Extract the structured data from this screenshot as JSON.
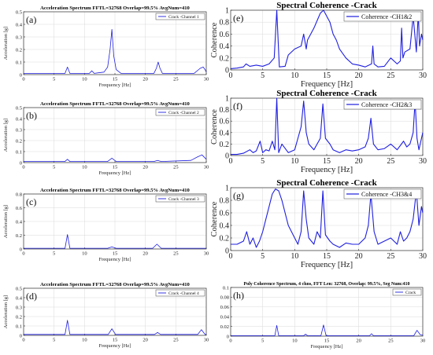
{
  "chart_data": [
    {
      "type": "line",
      "panel": "(a)",
      "title": "Acceleration Spectrum FFTL=32768 Overlap=99.5% AvgNum=410",
      "xlabel": "Frequency [Hz]",
      "ylabel": "Acceleration [g]",
      "xlim": [
        0,
        30
      ],
      "ylim": [
        0,
        0.5
      ],
      "xticks": [
        0,
        5,
        10,
        15,
        20,
        25,
        30
      ],
      "yticks": [
        0,
        0.1,
        0.2,
        0.3,
        0.4,
        0.5
      ],
      "ytick_labels": [
        "0",
        "0.1",
        "0.2",
        "0.3",
        "0.4",
        "0.5"
      ],
      "grid": true,
      "legend_position": "top-right",
      "series": [
        {
          "name": "Crack -Channel 1",
          "color": "#1f1fe0",
          "x": [
            0,
            6.8,
            7.2,
            7.6,
            10.8,
            11.2,
            11.6,
            13.2,
            13.8,
            14.2,
            14.5,
            14.8,
            15.2,
            16,
            21.4,
            21.8,
            22.1,
            22.4,
            22.8,
            28,
            29,
            29.5,
            29.8,
            30
          ],
          "y": [
            0.01,
            0.01,
            0.06,
            0.01,
            0.01,
            0.03,
            0.01,
            0.02,
            0.06,
            0.2,
            0.36,
            0.15,
            0.04,
            0.01,
            0.01,
            0.05,
            0.1,
            0.05,
            0.01,
            0.01,
            0.05,
            0.06,
            0.04,
            0.02
          ]
        }
      ]
    },
    {
      "type": "line",
      "panel": "(b)",
      "title": "Acceleration Spectrum FFTL=32768 Overlap=99.5% AvgNum=410",
      "xlabel": "Frequency [Hz]",
      "ylabel": "Acceleration [g]",
      "xlim": [
        0,
        30
      ],
      "ylim": [
        0,
        0.5
      ],
      "xticks": [
        0,
        5,
        10,
        15,
        20,
        25,
        30
      ],
      "yticks": [
        0,
        0.1,
        0.2,
        0.3,
        0.4,
        0.5
      ],
      "ytick_labels": [
        "0",
        "0.1",
        "0.2",
        "0.3",
        "0.4",
        "0.5"
      ],
      "grid": true,
      "legend_position": "top-right",
      "series": [
        {
          "name": "Crack -Channel 2",
          "color": "#1f1fe0",
          "x": [
            0,
            6.8,
            7.2,
            7.6,
            13.8,
            14.5,
            15.2,
            21.4,
            22,
            22.6,
            27.5,
            28.5,
            29.3,
            30
          ],
          "y": [
            0.01,
            0.01,
            0.03,
            0.01,
            0.01,
            0.04,
            0.01,
            0.01,
            0.02,
            0.01,
            0.02,
            0.05,
            0.07,
            0.03
          ]
        }
      ]
    },
    {
      "type": "line",
      "panel": "(c)",
      "title": "Acceleration Spectrum FFTL=32768 Overlap=99.5% AvgNum=410",
      "xlabel": "Frequency [Hz]",
      "ylabel": "Acceleration [g]",
      "xlim": [
        0,
        30
      ],
      "ylim": [
        0,
        0.8
      ],
      "xticks": [
        0,
        5,
        10,
        15,
        20,
        25,
        30
      ],
      "yticks": [
        0,
        0.2,
        0.4,
        0.6,
        0.8
      ],
      "ytick_labels": [
        "0",
        "0.2",
        "0.4",
        "0.6",
        "0.8"
      ],
      "grid": true,
      "legend_position": "top-right",
      "series": [
        {
          "name": "Crack -Channel 3",
          "color": "#1f1fe0",
          "x": [
            0,
            6.8,
            7.2,
            7.6,
            13.8,
            14.5,
            15.2,
            21.2,
            21.9,
            22.6,
            30
          ],
          "y": [
            0.01,
            0.01,
            0.21,
            0.01,
            0.01,
            0.03,
            0.01,
            0.01,
            0.07,
            0.01,
            0.01
          ]
        }
      ]
    },
    {
      "type": "line",
      "panel": "(d)",
      "title": "Acceleration Spectrum FFTL=32768 Overlap=99.5% AvgNum=410",
      "xlabel": "Frequency [Hz]",
      "ylabel": "Acceleration [g]",
      "xlim": [
        0,
        30
      ],
      "ylim": [
        0,
        0.5
      ],
      "xticks": [
        0,
        5,
        10,
        15,
        20,
        25,
        30
      ],
      "yticks": [
        0,
        0.1,
        0.2,
        0.3,
        0.4,
        0.5
      ],
      "ytick_labels": [
        "0",
        "0.1",
        "0.2",
        "0.3",
        "0.4",
        "0.5"
      ],
      "grid": true,
      "legend_position": "top-right",
      "series": [
        {
          "name": "Crack -Channel 4",
          "color": "#1f1fe0",
          "x": [
            0,
            6.8,
            7.2,
            7.6,
            13.9,
            14.5,
            15.1,
            21.5,
            22,
            22.5,
            28.6,
            29.2,
            29.8,
            30
          ],
          "y": [
            0.01,
            0.01,
            0.16,
            0.01,
            0.01,
            0.07,
            0.01,
            0.01,
            0.03,
            0.01,
            0.01,
            0.06,
            0.01,
            0.01
          ]
        }
      ]
    },
    {
      "type": "line",
      "panel": "(e)",
      "title": "Spectral Coherence -Crack",
      "xlabel": "Frequency [Hz]",
      "ylabel": "Coherence",
      "xlim": [
        0,
        30
      ],
      "ylim": [
        0,
        1
      ],
      "xticks": [
        0,
        5,
        10,
        15,
        20,
        25,
        30
      ],
      "yticks": [
        0,
        0.2,
        0.4,
        0.6,
        0.8,
        1
      ],
      "ytick_labels": [
        "0",
        "0.2",
        "0.4",
        "0.6",
        "0.8",
        "1"
      ],
      "grid": true,
      "legend_position": "top-right",
      "series": [
        {
          "name": "Coherence -CH1&2",
          "color": "#1f1fe0",
          "x": [
            0,
            1,
            2,
            2.4,
            3,
            4,
            5,
            6,
            6.8,
            7.2,
            7.6,
            8.5,
            9,
            10,
            11,
            11.4,
            11.8,
            12,
            13,
            13.6,
            14,
            14.5,
            15,
            15.5,
            16,
            16.5,
            17,
            18,
            19,
            20,
            21,
            22,
            22.2,
            22.4,
            23,
            24,
            25,
            26,
            26.5,
            26.7,
            26.9,
            27.2,
            28,
            28.5,
            29,
            29.3,
            29.5,
            29.8,
            30
          ],
          "y": [
            0.02,
            0.03,
            0.05,
            0.1,
            0.06,
            0.08,
            0.06,
            0.1,
            0.2,
            1,
            0.05,
            0.06,
            0.25,
            0.35,
            0.4,
            0.6,
            0.35,
            0.5,
            0.7,
            0.85,
            0.95,
            1,
            0.9,
            0.8,
            0.6,
            0.5,
            0.35,
            0.2,
            0.1,
            0.08,
            0.05,
            0.1,
            0.4,
            0.1,
            0.05,
            0.06,
            0.2,
            0.1,
            0.15,
            0.7,
            0.2,
            0.3,
            0.35,
            0.9,
            0.3,
            0.95,
            0.4,
            0.6,
            0.5
          ]
        }
      ]
    },
    {
      "type": "line",
      "panel": "(f)",
      "title": "Spectral Coherence -Crack",
      "xlabel": "Frequency [Hz]",
      "ylabel": "Coherence",
      "xlim": [
        0,
        30
      ],
      "ylim": [
        0,
        1
      ],
      "xticks": [
        0,
        5,
        10,
        15,
        20,
        25,
        30
      ],
      "yticks": [
        0,
        0.2,
        0.4,
        0.6,
        0.8,
        1
      ],
      "ytick_labels": [
        "0",
        "0.2",
        "0.4",
        "0.6",
        "0.8",
        "1"
      ],
      "grid": true,
      "legend_position": "top-right",
      "series": [
        {
          "name": "Coherence -CH2&3",
          "color": "#1f1fe0",
          "x": [
            0,
            1,
            2,
            3,
            3.5,
            4,
            4.6,
            5,
            5.5,
            6,
            6.5,
            6.9,
            7.2,
            7.5,
            8,
            9,
            10,
            10.5,
            11,
            11.4,
            11.8,
            12.2,
            13,
            13.5,
            14,
            14.4,
            14.8,
            15.5,
            16,
            17,
            18,
            19,
            20,
            21,
            21.5,
            21.9,
            22.3,
            23,
            24,
            25,
            26,
            27,
            27.5,
            28,
            28.5,
            28.8,
            29.1,
            29.4,
            30
          ],
          "y": [
            0.02,
            0.02,
            0.04,
            0.1,
            0.05,
            0.08,
            0.25,
            0.05,
            0.1,
            0.08,
            0.25,
            0.1,
            1,
            0.05,
            0.2,
            0.05,
            0.1,
            0.3,
            0.5,
            0.95,
            0.4,
            0.2,
            0.1,
            0.2,
            0.3,
            0.9,
            0.3,
            0.2,
            0.1,
            0.05,
            0.1,
            0.08,
            0.1,
            0.15,
            0.3,
            0.65,
            0.2,
            0.1,
            0.12,
            0.2,
            0.1,
            0.25,
            0.15,
            0.2,
            0.4,
            0.95,
            0.3,
            0.1,
            0.4
          ]
        }
      ]
    },
    {
      "type": "line",
      "panel": "(g)",
      "title": "Spectral Coherence -Crack",
      "xlabel": "Frequency [Hz]",
      "ylabel": "Coherence",
      "xlim": [
        0,
        30
      ],
      "ylim": [
        0,
        1
      ],
      "xticks": [
        0,
        5,
        10,
        15,
        20,
        25,
        30
      ],
      "yticks": [
        0,
        0.2,
        0.4,
        0.6,
        0.8,
        1
      ],
      "ytick_labels": [
        "0",
        "0.2",
        "0.4",
        "0.6",
        "0.8",
        "1"
      ],
      "grid": true,
      "legend_position": "top-right",
      "series": [
        {
          "name": "Coherence -CH3&4",
          "color": "#1f1fe0",
          "x": [
            0,
            1,
            2,
            2.5,
            3,
            3.5,
            4,
            4.5,
            5,
            5.5,
            6,
            6.5,
            7,
            7.5,
            8,
            8.5,
            9,
            9.5,
            10,
            10.5,
            11,
            11.4,
            11.8,
            12.2,
            13,
            13.5,
            14,
            14.4,
            14.8,
            15.5,
            16,
            17,
            18,
            19,
            20,
            21,
            21.5,
            21.9,
            22.4,
            23,
            24,
            25,
            26,
            26.5,
            27,
            27.5,
            28,
            28.5,
            29,
            29.4,
            29.8,
            30
          ],
          "y": [
            0.1,
            0.1,
            0.15,
            0.3,
            0.1,
            0.2,
            0.05,
            0.15,
            0.3,
            0.5,
            0.7,
            0.9,
            0.98,
            0.95,
            0.8,
            0.6,
            0.4,
            0.3,
            0.2,
            0.1,
            0.3,
            0.95,
            0.5,
            0.2,
            0.1,
            0.3,
            0.2,
            0.95,
            0.25,
            0.15,
            0.1,
            0.05,
            0.12,
            0.1,
            0.1,
            0.2,
            0.4,
            0.9,
            0.3,
            0.1,
            0.15,
            0.2,
            0.1,
            0.3,
            0.15,
            0.2,
            0.3,
            0.5,
            0.95,
            0.4,
            0.7,
            0.6
          ]
        }
      ]
    },
    {
      "type": "line",
      "panel": "(h)",
      "title": "Poly Coherence Spectrum, 4 chns, FFT Len: 32768, Overlap: 99.5%, Seg Num:410",
      "xlabel": "Frequency [Hz]",
      "ylabel": "",
      "xlim": [
        0,
        30
      ],
      "ylim": [
        0,
        0.1
      ],
      "xticks": [
        0,
        5,
        10,
        15,
        20,
        25,
        30
      ],
      "yticks": [
        0,
        0.02,
        0.04,
        0.06,
        0.08,
        0.1
      ],
      "ytick_labels": [
        "0",
        "0.02",
        "0.04",
        "0.06",
        "0.08",
        "0.1"
      ],
      "grid": true,
      "legend_position": "top-right",
      "series": [
        {
          "name": "Crack",
          "color": "#1f1fe0",
          "x": [
            0,
            6.9,
            7.2,
            7.5,
            11.4,
            11.7,
            12,
            14.1,
            14.5,
            14.9,
            21.7,
            22,
            22.3,
            28.6,
            29.1,
            29.6,
            30
          ],
          "y": [
            0.001,
            0.001,
            0.022,
            0.001,
            0.001,
            0.004,
            0.001,
            0.001,
            0.023,
            0.001,
            0.001,
            0.005,
            0.001,
            0.001,
            0.012,
            0.003,
            0.002
          ]
        }
      ]
    }
  ]
}
